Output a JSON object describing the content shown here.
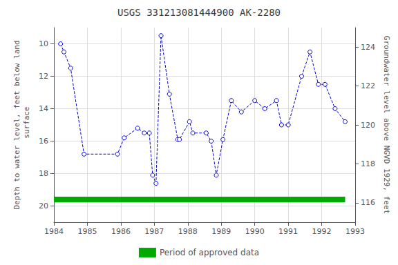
{
  "chart_data": {
    "type": "line",
    "title": "USGS 331213081444900 AK-2280",
    "ylabel": "Depth to water level, feet below land\n surface",
    "y2label": "Groundwater level above NGVD 1929, feet",
    "x": [
      1984.2,
      1984.3,
      1984.5,
      1984.9,
      1985.9,
      1986.1,
      1986.5,
      1986.7,
      1986.85,
      1986.95,
      1987.05,
      1987.2,
      1987.45,
      1987.7,
      1987.75,
      1988.05,
      1988.15,
      1988.55,
      1988.7,
      1988.85,
      1989.05,
      1989.3,
      1989.6,
      1990.0,
      1990.3,
      1990.65,
      1990.8,
      1991.0,
      1991.4,
      1991.65,
      1991.9,
      1992.1,
      1992.4,
      1992.7
    ],
    "series": [
      {
        "color": "#0000cc",
        "marker": "circle",
        "line_style": "dashed",
        "values": [
          10.0,
          10.5,
          11.5,
          16.8,
          16.8,
          15.8,
          15.2,
          15.5,
          15.5,
          18.1,
          18.6,
          9.5,
          13.1,
          15.9,
          15.9,
          14.8,
          15.5,
          15.5,
          16.0,
          18.1,
          15.9,
          13.5,
          14.2,
          13.5,
          14.0,
          13.5,
          15.0,
          15.0,
          12.0,
          10.5,
          12.5,
          12.5,
          14.0,
          14.8
        ]
      }
    ],
    "approved_period": {
      "name": "Period of approved data",
      "color": "#00aa00",
      "x_start": 1984.0,
      "x_end": 1992.7,
      "y": 19.6,
      "height": 0.35
    },
    "xlim": [
      1984,
      1993
    ],
    "xticks": [
      1984,
      1985,
      1986,
      1987,
      1988,
      1989,
      1990,
      1991,
      1992,
      1993
    ],
    "ylim": [
      21,
      9
    ],
    "yticks": [
      10,
      12,
      14,
      16,
      18,
      20
    ],
    "y2lim": [
      115,
      125
    ],
    "y2ticks": [
      116,
      118,
      120,
      122,
      124
    ],
    "grid": true
  }
}
